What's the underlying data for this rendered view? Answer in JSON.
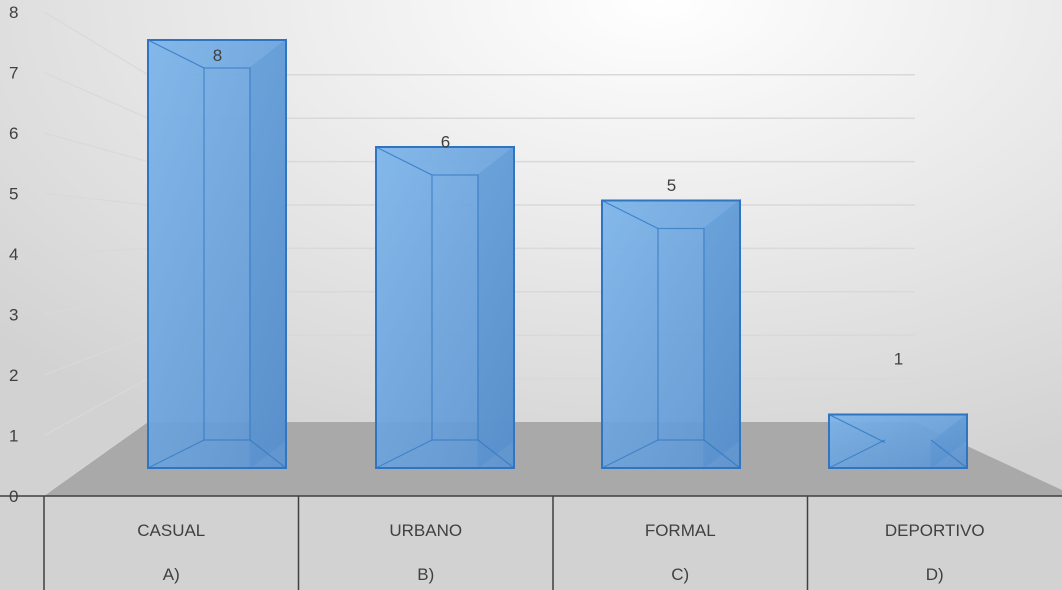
{
  "chart_data": {
    "type": "bar",
    "title": "",
    "xlabel": "",
    "ylabel": "",
    "ylim": [
      0,
      8
    ],
    "yticks": [
      "0",
      "1",
      "2",
      "3",
      "4",
      "5",
      "6",
      "7",
      "8"
    ],
    "categories": [
      "CASUAL",
      "URBANO",
      "FORMAL",
      "DEPORTIVO"
    ],
    "category_letters": [
      "A)",
      "B)",
      "C)",
      "D)"
    ],
    "values": [
      8,
      6,
      5,
      1
    ],
    "data_labels": [
      "8",
      "6",
      "5",
      "1"
    ],
    "legend": "none",
    "grid": true,
    "style": "3d-column"
  },
  "colors": {
    "bar_front": "#6fa8e0",
    "bar_side": "#2e5c8a",
    "bar_top": "#8fbde8",
    "bar_edge": "#2f75c1",
    "floor": "#a9a9a9",
    "background_light": "#ffffff",
    "background_dark": "#d4d4d4",
    "gridline": "#d9d9d9",
    "table_line": "#404040"
  }
}
